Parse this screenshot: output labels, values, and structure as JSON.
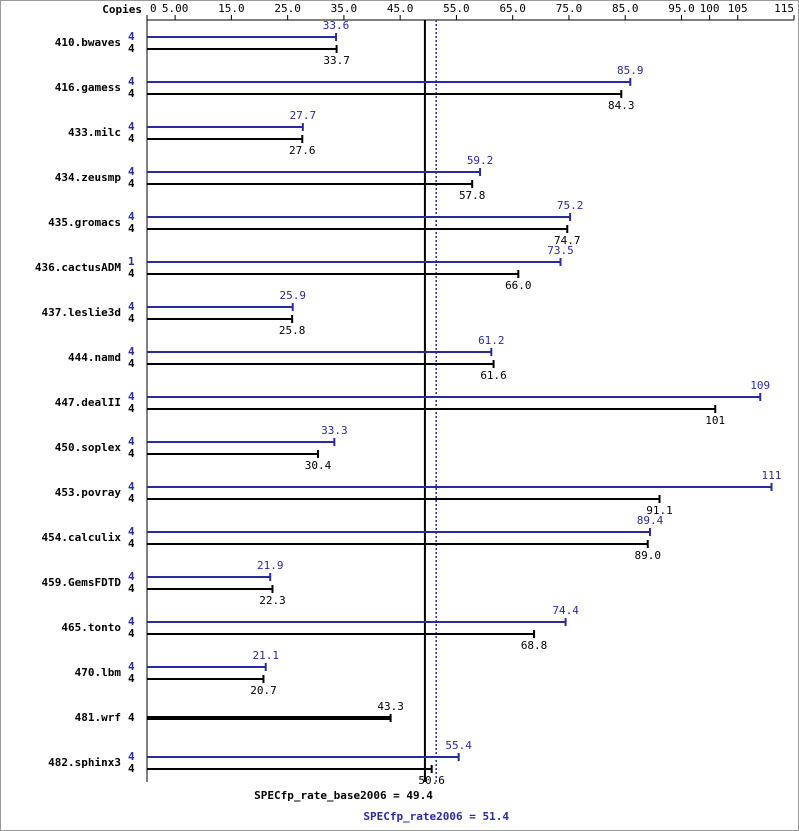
{
  "chart_data": {
    "type": "bar",
    "orientation": "horizontal",
    "copies_header": "Copies",
    "categories": [
      "410.bwaves",
      "416.gamess",
      "433.milc",
      "434.zeusmp",
      "435.gromacs",
      "436.cactusADM",
      "437.leslie3d",
      "444.namd",
      "447.dealII",
      "450.soplex",
      "453.povray",
      "454.calculix",
      "459.GemsFDTD",
      "465.tonto",
      "470.lbm",
      "481.wrf",
      "482.sphinx3"
    ],
    "series": [
      {
        "color": "#2a2aa0",
        "copies": [
          4,
          4,
          4,
          4,
          4,
          1,
          4,
          4,
          4,
          4,
          4,
          4,
          4,
          4,
          4,
          null,
          4
        ],
        "values": [
          33.6,
          85.9,
          27.7,
          59.2,
          75.2,
          73.5,
          25.9,
          61.2,
          109,
          33.3,
          111,
          89.4,
          21.9,
          74.4,
          21.1,
          null,
          55.4
        ],
        "value_labels": [
          "33.6",
          "85.9",
          "27.7",
          "59.2",
          "75.2",
          "73.5",
          "25.9",
          "61.2",
          "109",
          "33.3",
          "111",
          "89.4",
          "21.9",
          "74.4",
          "21.1",
          null,
          "55.4"
        ]
      },
      {
        "color": "#000000",
        "copies": [
          4,
          4,
          4,
          4,
          4,
          4,
          4,
          4,
          4,
          4,
          4,
          4,
          4,
          4,
          4,
          4,
          4
        ],
        "values": [
          33.7,
          84.3,
          27.6,
          57.8,
          74.7,
          66.0,
          25.8,
          61.6,
          101,
          30.4,
          91.1,
          89.0,
          22.3,
          68.8,
          20.7,
          43.3,
          50.6
        ],
        "value_labels": [
          "33.7",
          "84.3",
          "27.6",
          "57.8",
          "74.7",
          "66.0",
          "25.8",
          "61.6",
          "101",
          "30.4",
          "91.1",
          "89.0",
          "22.3",
          "68.8",
          "20.7",
          "43.3",
          "50.6"
        ]
      }
    ],
    "xlim": [
      0,
      115
    ],
    "xticks": [
      0,
      {
        "value": 5,
        "label": "5.00"
      },
      {
        "value": 15,
        "label": "15.0"
      },
      {
        "value": 25,
        "label": "25.0"
      },
      {
        "value": 35,
        "label": "35.0"
      },
      {
        "value": 45,
        "label": "45.0"
      },
      {
        "value": 55,
        "label": "55.0"
      },
      {
        "value": 65,
        "label": "65.0"
      },
      {
        "value": 75,
        "label": "75.0"
      },
      {
        "value": 85,
        "label": "85.0"
      },
      {
        "value": 95,
        "label": "95.0"
      },
      100,
      105,
      115
    ],
    "reference_lines": [
      {
        "value": 49.4,
        "label": "SPECfp_rate_base2006 = 49.4",
        "color": "#000000",
        "style": "solid"
      },
      {
        "value": 51.4,
        "label": "SPECfp_rate2006 = 51.4",
        "color": "#2a2aa0",
        "style": "dotted"
      }
    ]
  }
}
